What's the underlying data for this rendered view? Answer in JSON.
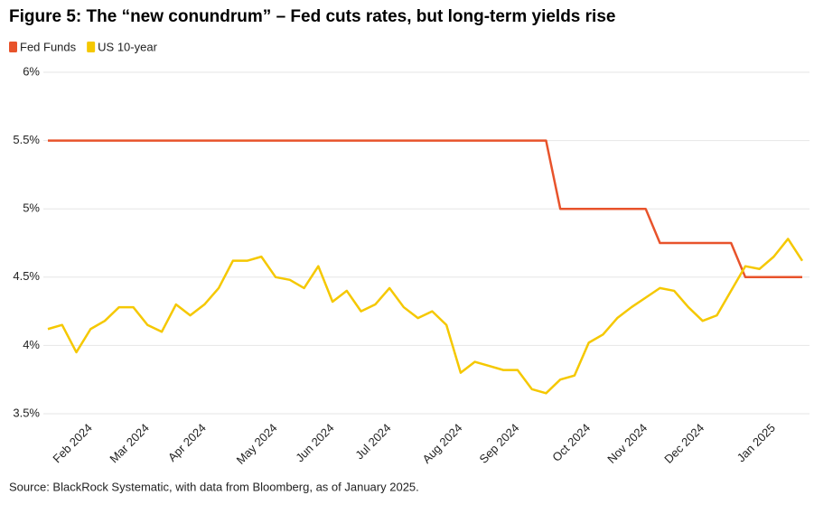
{
  "chart_data": {
    "type": "line",
    "title": "Figure 5: The “new conundrum” – Fed cuts rates, but long-term yields rise",
    "source": "Source: BlackRock Systematic, with data from Bloomberg, as of January 2025.",
    "categories": [
      null,
      null,
      null,
      "Feb 2024",
      null,
      null,
      null,
      "Mar 2024",
      null,
      null,
      null,
      "Apr 2024",
      null,
      null,
      null,
      null,
      "May 2024",
      null,
      null,
      null,
      "Jun 2024",
      null,
      null,
      null,
      "Jul 2024",
      null,
      null,
      null,
      null,
      "Aug 2024",
      null,
      null,
      null,
      "Sep 2024",
      null,
      null,
      null,
      null,
      "Oct 2024",
      null,
      null,
      null,
      "Nov 2024",
      null,
      null,
      null,
      "Dec 2024",
      null,
      null,
      null,
      null,
      "Jan 2025",
      null,
      null
    ],
    "series": [
      {
        "name": "Fed Funds",
        "color": "#e8532b",
        "values": [
          5.5,
          5.5,
          5.5,
          5.5,
          5.5,
          5.5,
          5.5,
          5.5,
          5.5,
          5.5,
          5.5,
          5.5,
          5.5,
          5.5,
          5.5,
          5.5,
          5.5,
          5.5,
          5.5,
          5.5,
          5.5,
          5.5,
          5.5,
          5.5,
          5.5,
          5.5,
          5.5,
          5.5,
          5.5,
          5.5,
          5.5,
          5.5,
          5.5,
          5.5,
          5.5,
          5.5,
          5.0,
          5.0,
          5.0,
          5.0,
          5.0,
          5.0,
          5.0,
          4.75,
          4.75,
          4.75,
          4.75,
          4.75,
          4.75,
          4.5,
          4.5,
          4.5,
          4.5,
          4.5
        ]
      },
      {
        "name": "US 10-year",
        "color": "#f5c800",
        "values": [
          4.12,
          4.15,
          3.95,
          4.12,
          4.18,
          4.28,
          4.28,
          4.15,
          4.1,
          4.3,
          4.22,
          4.3,
          4.42,
          4.62,
          4.62,
          4.65,
          4.5,
          4.48,
          4.42,
          4.58,
          4.32,
          4.4,
          4.25,
          4.3,
          4.42,
          4.28,
          4.2,
          4.25,
          4.15,
          3.8,
          3.88,
          3.85,
          3.82,
          3.82,
          3.68,
          3.65,
          3.75,
          3.78,
          4.02,
          4.08,
          4.2,
          4.28,
          4.35,
          4.42,
          4.4,
          4.28,
          4.18,
          4.22,
          4.4,
          4.58,
          4.56,
          4.65,
          4.78,
          4.62
        ]
      }
    ],
    "ylim": [
      3.5,
      6
    ],
    "yticks": [
      {
        "value": 3.5,
        "label": "3.5%"
      },
      {
        "value": 4,
        "label": "4%"
      },
      {
        "value": 4.5,
        "label": "4.5%"
      },
      {
        "value": 5,
        "label": "5%"
      },
      {
        "value": 5.5,
        "label": "5.5%"
      },
      {
        "value": 6,
        "label": "6%"
      }
    ],
    "grid": true
  }
}
